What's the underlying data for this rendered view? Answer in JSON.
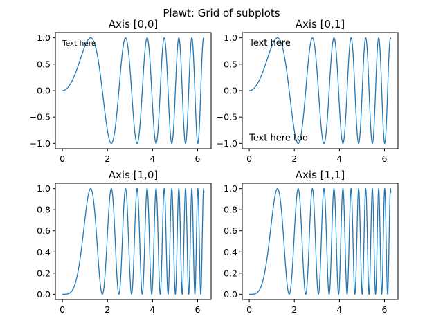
{
  "figure": {
    "suptitle": "Plawt: Grid of subplots"
  },
  "colors": {
    "line": "#1f77b4",
    "axes": "#000000",
    "background": "#ffffff"
  },
  "chart_data": [
    {
      "type": "line",
      "title": "Axis [0,0]",
      "function": "sin(x^2)",
      "x_range": [
        0,
        6.283
      ],
      "x": [
        0,
        0.5,
        1.0,
        1.253,
        1.5,
        2.0,
        2.171,
        2.5,
        3.0,
        3.5,
        4.0,
        4.5,
        5.0,
        5.5,
        6.0,
        6.283
      ],
      "y": [
        0,
        0.25,
        0.84,
        1.0,
        0.78,
        -0.76,
        -1.0,
        -0.03,
        0.41,
        -0.31,
        -0.29,
        0.97,
        -0.13,
        -0.65,
        -0.99,
        0.98
      ],
      "xlim": [
        -0.31,
        6.6
      ],
      "ylim": [
        -1.1,
        1.1
      ],
      "xticks": [
        0,
        2,
        4,
        6
      ],
      "yticks": [
        -1.0,
        -0.5,
        0.0,
        0.5,
        1.0
      ],
      "xtick_labels": [
        "0",
        "2",
        "4",
        "6"
      ],
      "ytick_labels": [
        "−1.0",
        "−0.5",
        "0.0",
        "0.5",
        "1.0"
      ],
      "annotations": [
        {
          "text": "Text here",
          "x": 0.0,
          "y": 0.85,
          "size": "small"
        }
      ]
    },
    {
      "type": "line",
      "title": "Axis [0,1]",
      "function": "sin(x^2)",
      "x_range": [
        0,
        6.283
      ],
      "x": [
        0,
        0.5,
        1.0,
        1.253,
        1.5,
        2.0,
        2.171,
        2.5,
        3.0,
        3.5,
        4.0,
        4.5,
        5.0,
        5.5,
        6.0,
        6.283
      ],
      "y": [
        0,
        0.25,
        0.84,
        1.0,
        0.78,
        -0.76,
        -1.0,
        -0.03,
        0.41,
        -0.31,
        -0.29,
        0.97,
        -0.13,
        -0.65,
        -0.99,
        0.98
      ],
      "xlim": [
        -0.31,
        6.6
      ],
      "ylim": [
        -1.1,
        1.1
      ],
      "xticks": [
        0,
        2,
        4,
        6
      ],
      "yticks": [
        -1.0,
        -0.5,
        0.0,
        0.5,
        1.0
      ],
      "xtick_labels": [
        "0",
        "2",
        "4",
        "6"
      ],
      "ytick_labels": [
        "−1.0",
        "−0.5",
        "0.0",
        "0.5",
        "1.0"
      ],
      "annotations": [
        {
          "text": "Text here",
          "x": 0.0,
          "y": 0.85,
          "size": "normal"
        },
        {
          "text": "Text here too",
          "x": 0.0,
          "y": -0.95,
          "size": "normal"
        }
      ]
    },
    {
      "type": "line",
      "title": "Axis [1,0]",
      "function": "sin(x^2)^2",
      "x_range": [
        0,
        6.283
      ],
      "x": [
        0,
        0.5,
        1.0,
        1.253,
        1.5,
        1.772,
        2.0,
        2.507,
        3.0,
        4.0,
        5.0,
        6.0,
        6.283
      ],
      "y": [
        0,
        0.06,
        0.71,
        1.0,
        0.61,
        0.0,
        0.57,
        1.0,
        0.17,
        0.08,
        0.02,
        0.98,
        0.96
      ],
      "xlim": [
        -0.31,
        6.6
      ],
      "ylim": [
        -0.05,
        1.05
      ],
      "xticks": [
        0,
        2,
        4,
        6
      ],
      "yticks": [
        0.0,
        0.2,
        0.4,
        0.6,
        0.8,
        1.0
      ],
      "xtick_labels": [
        "0",
        "2",
        "4",
        "6"
      ],
      "ytick_labels": [
        "0.0",
        "0.2",
        "0.4",
        "0.6",
        "0.8",
        "1.0"
      ],
      "annotations": []
    },
    {
      "type": "line",
      "title": "Axis [1,1]",
      "function": "sin(x^2)^2",
      "x_range": [
        0,
        6.283
      ],
      "x": [
        0,
        0.5,
        1.0,
        1.253,
        1.5,
        1.772,
        2.0,
        2.507,
        3.0,
        4.0,
        5.0,
        6.0,
        6.283
      ],
      "y": [
        0,
        0.06,
        0.71,
        1.0,
        0.61,
        0.0,
        0.57,
        1.0,
        0.17,
        0.08,
        0.02,
        0.98,
        0.96
      ],
      "xlim": [
        -0.31,
        6.6
      ],
      "ylim": [
        -0.05,
        1.05
      ],
      "xticks": [
        0,
        2,
        4,
        6
      ],
      "yticks": [
        0.0,
        0.2,
        0.4,
        0.6,
        0.8,
        1.0
      ],
      "xtick_labels": [
        "0",
        "2",
        "4",
        "6"
      ],
      "ytick_labels": [
        "0.0",
        "0.2",
        "0.4",
        "0.6",
        "0.8",
        "1.0"
      ],
      "annotations": []
    }
  ]
}
